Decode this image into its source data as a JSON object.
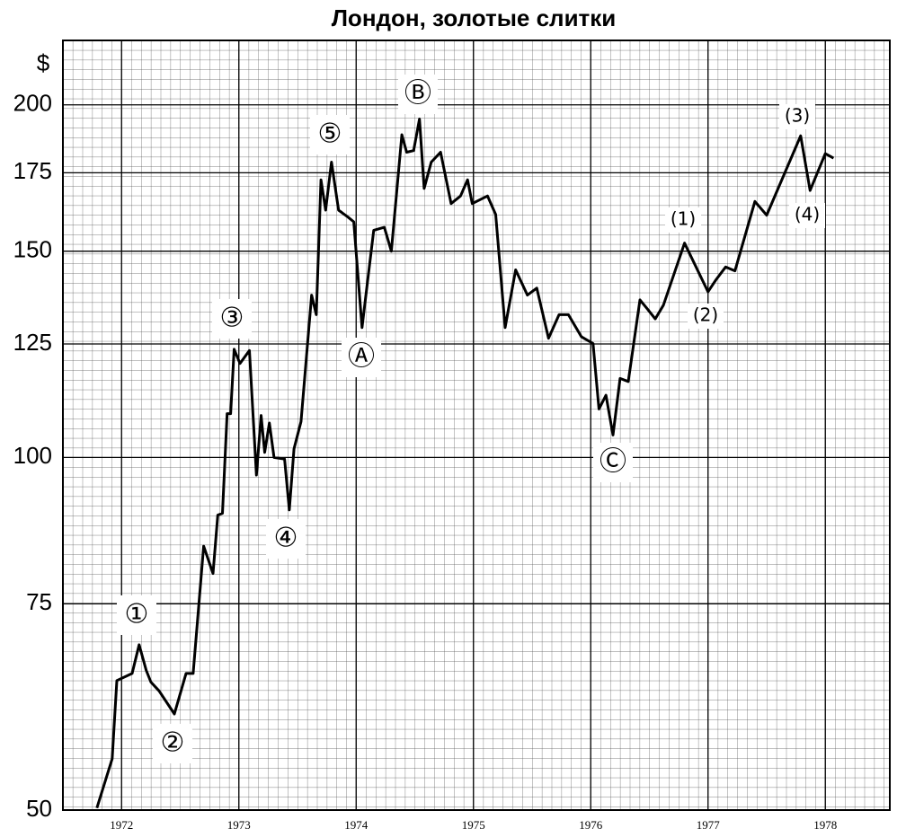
{
  "chart_data": {
    "type": "line",
    "title": "Лондон, золотые слитки",
    "ylabel": "$",
    "log_scale": true,
    "grid": true,
    "color": "#000000",
    "x": [
      1971.79,
      1971.92,
      1971.96,
      1972.09,
      1972.15,
      1972.21,
      1972.25,
      1972.32,
      1972.45,
      1972.55,
      1972.61,
      1972.7,
      1972.78,
      1972.82,
      1972.86,
      1972.9,
      1972.93,
      1972.96,
      1973.01,
      1973.09,
      1973.15,
      1973.19,
      1973.22,
      1973.26,
      1973.3,
      1973.39,
      1973.43,
      1973.47,
      1973.53,
      1973.62,
      1973.66,
      1973.7,
      1973.74,
      1973.79,
      1973.85,
      1973.93,
      1973.98,
      1974.05,
      1974.1,
      1974.15,
      1974.24,
      1974.3,
      1974.39,
      1974.43,
      1974.49,
      1974.54,
      1974.58,
      1974.64,
      1974.72,
      1974.81,
      1974.89,
      1974.95,
      1974.99,
      1975.12,
      1975.19,
      1975.27,
      1975.36,
      1975.46,
      1975.54,
      1975.64,
      1975.73,
      1975.81,
      1975.92,
      1976.02,
      1976.07,
      1976.13,
      1976.19,
      1976.25,
      1976.32,
      1976.42,
      1976.48,
      1976.55,
      1976.62,
      1976.8,
      1977.0,
      1977.07,
      1977.15,
      1977.23,
      1977.4,
      1977.5,
      1977.79,
      1977.87,
      1978.0,
      1978.07
    ],
    "values": [
      50.2,
      55.3,
      64.5,
      65.4,
      69.2,
      65.8,
      64.3,
      63.2,
      60.4,
      65.4,
      65.4,
      84.0,
      79.6,
      89.3,
      89.6,
      109.0,
      109.0,
      123.7,
      120.3,
      123.4,
      96.6,
      108.6,
      101.0,
      107.0,
      100.0,
      99.7,
      90.2,
      101.7,
      107.3,
      137.6,
      132.4,
      172.6,
      162.6,
      178.7,
      162.6,
      160.4,
      158.9,
      129.1,
      142.1,
      156.3,
      157.2,
      150.0,
      188.6,
      182.2,
      182.8,
      194.5,
      169.7,
      178.7,
      182.2,
      164.7,
      167.2,
      172.6,
      164.7,
      167.2,
      161.2,
      129.1,
      144.6,
      137.6,
      139.5,
      126.4,
      132.4,
      132.4,
      126.8,
      125.1,
      110.0,
      113.0,
      104.5,
      116.8,
      116.1,
      136.3,
      134.0,
      131.3,
      134.9,
      152.4,
      138.5,
      141.9,
      145.4,
      144.3,
      165.4,
      161.0,
      188.2,
      169.0,
      181.7,
      180.1
    ],
    "xlim": [
      1971.5,
      1978.55
    ],
    "xticks": [
      1972,
      1973,
      1974,
      1975,
      1976,
      1977,
      1978
    ],
    "ylim": [
      50,
      227
    ],
    "yticks": [
      50,
      75,
      100,
      125,
      150,
      175,
      200
    ],
    "annotations": [
      "①",
      "②",
      "③",
      "④",
      "⑤",
      "Ⓐ",
      "Ⓑ",
      "Ⓒ",
      "(1)",
      "(2)",
      "(3)",
      "(4)"
    ]
  }
}
